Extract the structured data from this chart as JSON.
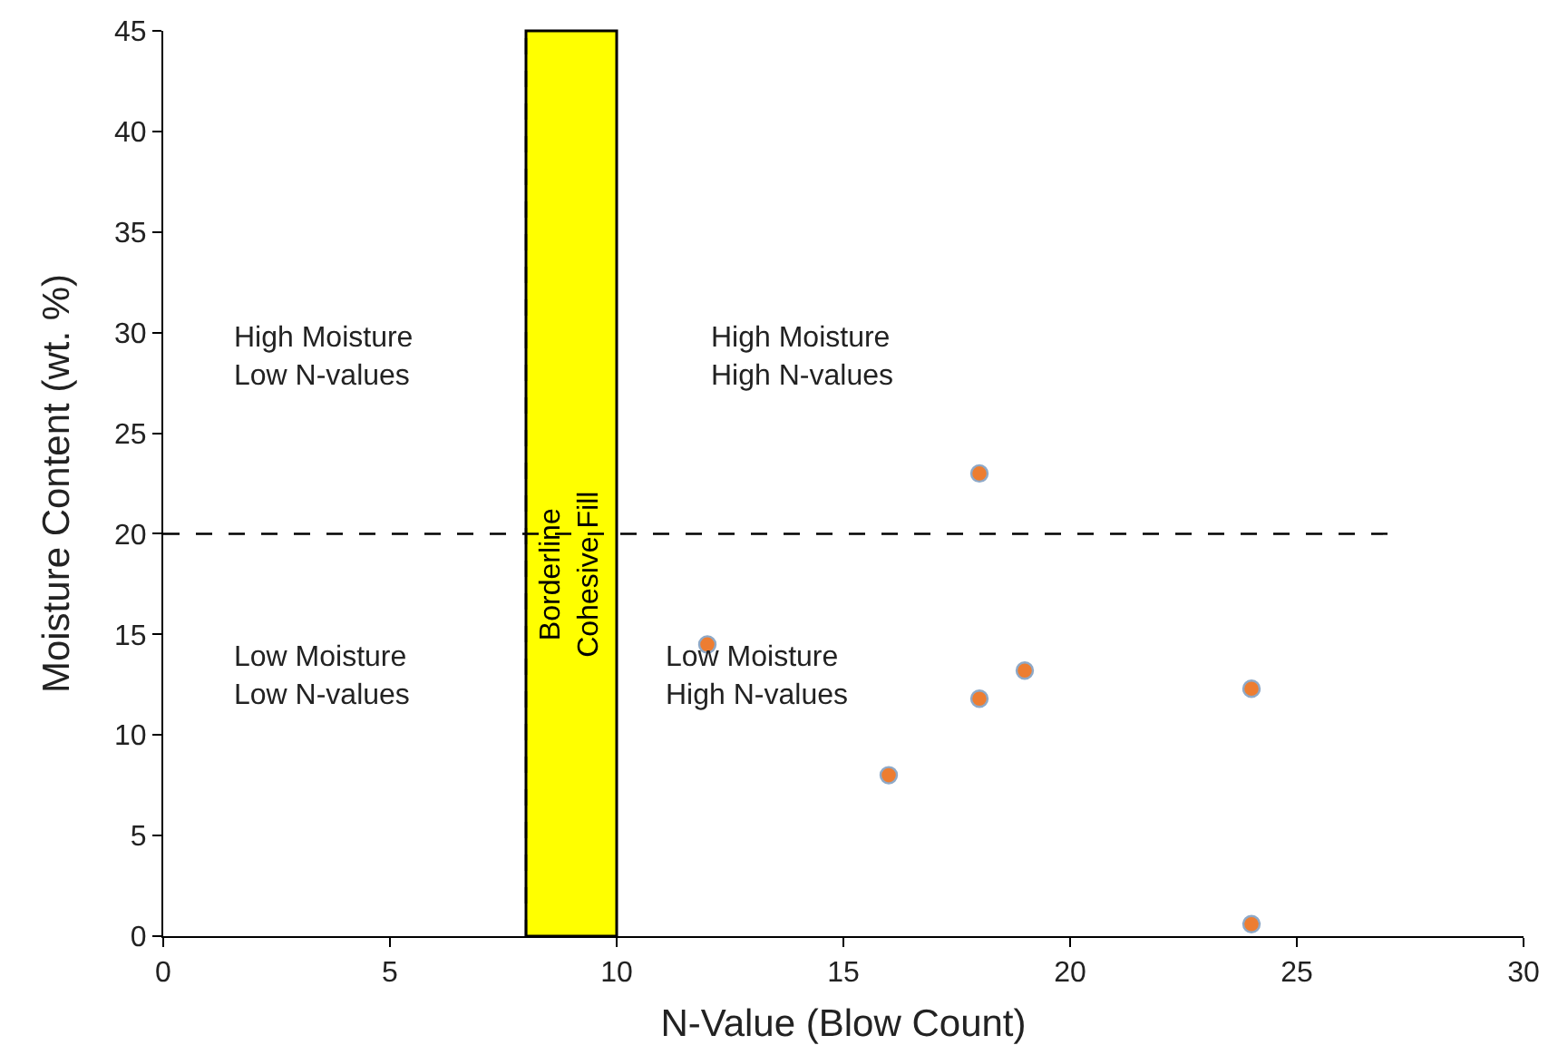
{
  "chart_data": {
    "type": "scatter",
    "xlabel": "N-Value (Blow Count)",
    "ylabel": "Moisture Content (wt. %)",
    "x": [
      12,
      18,
      19,
      18,
      24,
      16,
      24
    ],
    "values": [
      14.5,
      23,
      13.2,
      11.8,
      12.3,
      8,
      0.6
    ],
    "color": "#ed7d31",
    "marker": "circle",
    "grid": false,
    "legend": false,
    "xlim": [
      0,
      30
    ],
    "xticks": [
      0,
      5,
      10,
      15,
      20,
      25,
      30
    ],
    "ylim": [
      0,
      45
    ],
    "yticks": [
      0,
      5,
      10,
      15,
      20,
      25,
      30,
      35,
      40,
      45
    ],
    "bands": [
      {
        "axis": "x",
        "from": 8,
        "to": 10,
        "label": "Borderline\nCohesive Fill",
        "color": "#ffff00"
      }
    ],
    "ref_lines": [
      {
        "axis": "y",
        "value": 20,
        "label": null,
        "line_style": "dashed"
      },
      {
        "axis": "x",
        "value": 8,
        "label": null,
        "line_style": "dashed"
      }
    ],
    "annotations": [
      "High Moisture\nLow N-values",
      "High Moisture\nHigh N-values",
      "Low Moisture\nLow N-values",
      "Low Moisture\nHigh N-values"
    ]
  }
}
